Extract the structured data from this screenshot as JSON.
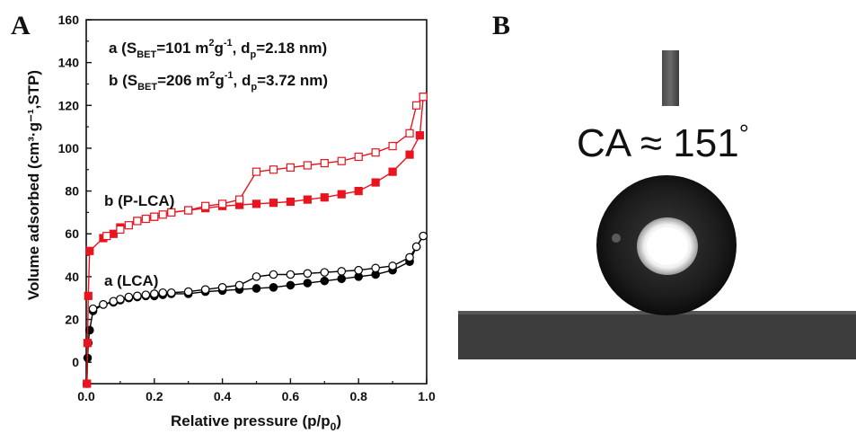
{
  "panels": {
    "a_label": "A",
    "b_label": "B"
  },
  "chart_data": {
    "type": "scatter",
    "xlabel": "Relative pressure (p/p",
    "xlabel_sub": "0",
    "xlabel_end": ")",
    "ylabel": "Volume adsorbed (cm³·g⁻¹,STP)",
    "xlim": [
      0,
      1.0
    ],
    "ylim": [
      -10,
      160
    ],
    "xticks": [
      "0.0",
      "0.2",
      "0.4",
      "0.6",
      "0.8",
      "1.0"
    ],
    "yticks": [
      "0",
      "20",
      "40",
      "60",
      "80",
      "100",
      "120",
      "140",
      "160"
    ],
    "annotations": {
      "line_a": {
        "prefix": "a (S",
        "sub": "BET",
        "mid": "=101 m",
        "sup1": "2",
        "unit": "g",
        "sup2": "-1",
        "sep": ", d",
        "sub2": "p",
        "end": "=2.18 nm)"
      },
      "line_b": {
        "prefix": "b (S",
        "sub": "BET",
        "mid": "=206 m",
        "sup1": "2",
        "unit": "g",
        "sup2": "-1",
        "sep": ", d",
        "sub2": "p",
        "end": "=3.72 nm)"
      },
      "label_b": "b (P-LCA)",
      "label_a": "a (LCA)"
    },
    "series": [
      {
        "name": "a (LCA)",
        "branch": "adsorption",
        "color": "#000000",
        "marker": "filled-circle",
        "x": [
          0.002,
          0.004,
          0.006,
          0.01,
          0.02,
          0.05,
          0.08,
          0.1,
          0.125,
          0.15,
          0.175,
          0.2,
          0.225,
          0.25,
          0.3,
          0.35,
          0.4,
          0.45,
          0.5,
          0.55,
          0.6,
          0.65,
          0.7,
          0.75,
          0.8,
          0.85,
          0.9,
          0.95,
          0.97,
          0.99
        ],
        "y": [
          -10,
          2,
          9,
          15,
          24,
          27,
          28,
          29,
          30,
          30.5,
          31,
          31,
          31.5,
          32,
          32,
          33,
          33.5,
          34,
          34.5,
          35,
          36,
          37,
          38,
          39,
          40,
          41,
          43,
          47,
          54,
          59
        ]
      },
      {
        "name": "a (LCA)",
        "branch": "desorption",
        "color": "#000000",
        "marker": "open-circle",
        "x": [
          0.02,
          0.05,
          0.08,
          0.1,
          0.125,
          0.15,
          0.175,
          0.2,
          0.225,
          0.25,
          0.3,
          0.35,
          0.4,
          0.45,
          0.5,
          0.55,
          0.6,
          0.65,
          0.7,
          0.75,
          0.8,
          0.85,
          0.9,
          0.95,
          0.97,
          0.99
        ],
        "y": [
          25,
          27,
          28.5,
          29.5,
          30.5,
          31,
          31.5,
          32,
          32.5,
          32.5,
          33,
          34,
          35,
          36,
          40,
          41,
          41,
          41.5,
          42,
          42.5,
          43,
          44,
          45,
          49,
          54,
          59
        ]
      },
      {
        "name": "b (P-LCA)",
        "branch": "adsorption",
        "color": "#e8141e",
        "marker": "filled-square",
        "x": [
          0.002,
          0.004,
          0.006,
          0.01,
          0.05,
          0.08,
          0.1,
          0.15,
          0.2,
          0.25,
          0.3,
          0.35,
          0.4,
          0.45,
          0.5,
          0.55,
          0.6,
          0.65,
          0.7,
          0.75,
          0.8,
          0.85,
          0.9,
          0.95,
          0.98,
          0.99
        ],
        "y": [
          -10,
          9,
          31,
          52,
          58,
          60,
          63,
          66,
          68,
          70,
          71,
          72,
          73,
          73.5,
          74,
          74.5,
          75,
          76,
          77,
          78.5,
          80,
          84,
          89,
          97,
          106,
          124
        ]
      },
      {
        "name": "b (P-LCA)",
        "branch": "desorption",
        "color": "#e8141e",
        "marker": "open-square",
        "x": [
          0.06,
          0.1,
          0.125,
          0.15,
          0.175,
          0.2,
          0.225,
          0.25,
          0.3,
          0.35,
          0.4,
          0.45,
          0.5,
          0.55,
          0.6,
          0.65,
          0.7,
          0.75,
          0.8,
          0.85,
          0.9,
          0.95,
          0.97,
          0.99
        ],
        "y": [
          59,
          62,
          64,
          66,
          67,
          68,
          69,
          70,
          71,
          73,
          74,
          76,
          89,
          90,
          91,
          92,
          93,
          94,
          96,
          98,
          101,
          107,
          120,
          124
        ]
      }
    ]
  },
  "photo": {
    "caption_prefix": "CA ≈ 151",
    "caption_degree": "°"
  }
}
